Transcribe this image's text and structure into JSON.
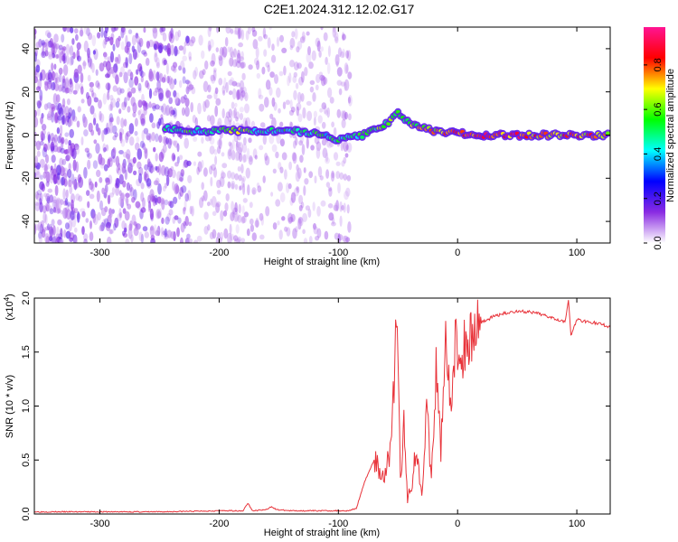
{
  "title": "C2E1.2024.312.12.02.G17",
  "chart_data": [
    {
      "type": "heatmap",
      "xlabel": "Height of straight line (km)",
      "ylabel": "Frequency (Hz)",
      "xlim": [
        -355,
        128
      ],
      "ylim": [
        -50,
        50
      ],
      "xticks": [
        -300,
        -200,
        -100,
        0,
        100
      ],
      "yticks": [
        -40,
        -20,
        0,
        20,
        40
      ],
      "colorbar": {
        "label": "Normalized spectral amplitude",
        "range": [
          0,
          0.97
        ],
        "ticks": [
          0.0,
          0.2,
          0.4,
          0.6,
          0.8
        ],
        "tick_labels": [
          "0.0",
          "0.2",
          "0.4",
          "0.6",
          "0.8"
        ],
        "colors": [
          "#ffffff",
          "#8a2be2",
          "#0000ff",
          "#00ffff",
          "#00ff00",
          "#ffff00",
          "#ff0000",
          "#ff1493"
        ]
      },
      "noise_regions": [
        {
          "x": [
            -355,
            -225
          ],
          "intensity": 0.8
        },
        {
          "x": [
            -225,
            -90
          ],
          "intensity": 0.45
        }
      ],
      "signal_band": [
        {
          "x": -245,
          "y": 3,
          "amp": 0.5
        },
        {
          "x": -220,
          "y": 2,
          "amp": 0.5
        },
        {
          "x": -200,
          "y": 2,
          "amp": 0.55
        },
        {
          "x": -180,
          "y": 2,
          "amp": 0.6
        },
        {
          "x": -160,
          "y": 2,
          "amp": 0.45
        },
        {
          "x": -140,
          "y": 2,
          "amp": 0.45
        },
        {
          "x": -120,
          "y": 1,
          "amp": 0.5
        },
        {
          "x": -100,
          "y": -2,
          "amp": 0.45
        },
        {
          "x": -80,
          "y": 0,
          "amp": 0.5
        },
        {
          "x": -60,
          "y": 5,
          "amp": 0.6
        },
        {
          "x": -50,
          "y": 10,
          "amp": 0.55
        },
        {
          "x": -40,
          "y": 5,
          "amp": 0.6
        },
        {
          "x": -20,
          "y": 2,
          "amp": 0.7
        },
        {
          "x": 0,
          "y": 1,
          "amp": 0.8
        },
        {
          "x": 20,
          "y": 0,
          "amp": 0.85
        },
        {
          "x": 40,
          "y": 0,
          "amp": 0.8
        },
        {
          "x": 60,
          "y": 0,
          "amp": 0.8
        },
        {
          "x": 80,
          "y": 0,
          "amp": 0.75
        },
        {
          "x": 100,
          "y": 0,
          "amp": 0.75
        },
        {
          "x": 128,
          "y": 0,
          "amp": 0.7
        }
      ]
    },
    {
      "type": "line",
      "xlabel": "Height of straight line (km)",
      "ylabel": "SNR (10 * v/v)",
      "yscale_label": "(x10",
      "yscale_exp": "4",
      "yscale_suffix": ")",
      "xlim": [
        -355,
        128
      ],
      "ylim": [
        0,
        2.0
      ],
      "xticks": [
        -300,
        -200,
        -100,
        0,
        100
      ],
      "yticks": [
        0.0,
        0.5,
        1.0,
        1.5,
        2.0
      ],
      "ytick_labels": [
        "0.0",
        "0.5",
        "1.0",
        "1.5",
        "2.0"
      ],
      "color": "#e8333a",
      "series": [
        {
          "x": [
            -355,
            -300,
            -250,
            -200,
            -180,
            -176,
            -172,
            -160,
            -156,
            -152,
            -140,
            -120,
            -100,
            -92,
            -85,
            -78,
            -70,
            -62,
            -56,
            -52,
            -50,
            -48,
            -45,
            -42,
            -38,
            -35,
            -30,
            -26,
            -22,
            -18,
            -14,
            -10,
            -6,
            -2,
            2,
            5,
            10,
            15,
            20,
            25,
            30,
            40,
            50,
            60,
            70,
            80,
            90,
            93,
            95,
            100,
            110,
            120,
            128
          ],
          "y": [
            0.02,
            0.02,
            0.02,
            0.03,
            0.03,
            0.1,
            0.03,
            0.04,
            0.07,
            0.04,
            0.03,
            0.03,
            0.03,
            0.03,
            0.05,
            0.3,
            0.5,
            0.35,
            0.6,
            1.55,
            1.6,
            0.3,
            0.8,
            0.15,
            0.3,
            0.6,
            0.2,
            1.0,
            0.3,
            1.3,
            0.6,
            1.75,
            0.9,
            1.6,
            1.4,
            1.5,
            1.65,
            1.72,
            1.78,
            1.8,
            1.83,
            1.86,
            1.88,
            1.87,
            1.85,
            1.82,
            1.78,
            1.99,
            1.65,
            1.8,
            1.78,
            1.76,
            1.73
          ]
        }
      ]
    }
  ]
}
